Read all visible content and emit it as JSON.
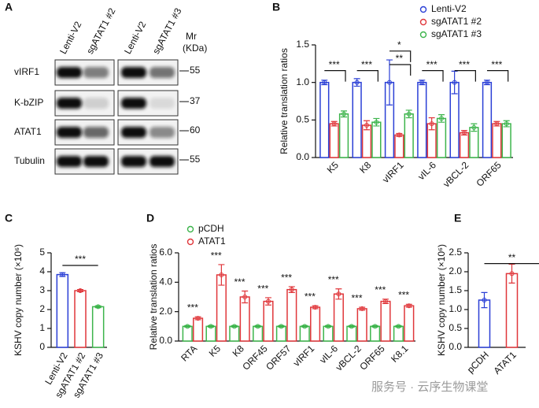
{
  "blot": {
    "label": "A",
    "lanes": [
      "Lenti-V2",
      "sgATAT1 #2",
      "Lenti-V2",
      "sgATAT1 #3"
    ],
    "mr": [
      "Mr",
      "(KDa)"
    ],
    "rows": [
      {
        "name": "vIRF1",
        "mr": "55"
      },
      {
        "name": "K-bZIP",
        "mr": "37"
      },
      {
        "name": "ATAT1",
        "mr": "60"
      },
      {
        "name": "Tubulin",
        "mr": "55"
      }
    ]
  },
  "chart_data": [
    {
      "type": "bar",
      "label": "B",
      "ylabel": "Relative translation ratios",
      "categories": [
        "K5",
        "K8",
        "vIRF1",
        "vIL-6",
        "vBCL-2",
        "ORF65"
      ],
      "series": [
        {
          "name": "Lenti-V2",
          "color": "#2a3fd6",
          "values": [
            1,
            1,
            1,
            1,
            1,
            1
          ],
          "errors": [
            0.03,
            0.05,
            0.3,
            0.03,
            0.15,
            0.03
          ]
        },
        {
          "name": "sgATAT1 #2",
          "color": "#e0363a",
          "values": [
            0.45,
            0.43,
            0.3,
            0.45,
            0.33,
            0.45
          ],
          "errors": [
            0.03,
            0.06,
            0.02,
            0.08,
            0.03,
            0.03
          ]
        },
        {
          "name": "sgATAT1 #3",
          "color": "#3cb44b",
          "values": [
            0.58,
            0.47,
            0.58,
            0.52,
            0.4,
            0.45
          ],
          "errors": [
            0.04,
            0.05,
            0.05,
            0.05,
            0.05,
            0.04
          ]
        }
      ],
      "ylim": [
        0,
        1.5
      ],
      "yticks": [
        {
          "value": 0,
          "label": "0.0"
        },
        0.5,
        {
          "value": 1,
          "label": "1.0"
        },
        1.5
      ],
      "legend": "top-right",
      "annotations": [
        "***",
        "***",
        "**",
        "*",
        "***",
        "***",
        "***"
      ]
    },
    {
      "type": "bar",
      "label": "C",
      "ylabel": "KSHV copy number (×10⁶)",
      "categories": [
        "Lenti-V2",
        "sgATAT1 #2",
        "sgATAT1 #3"
      ],
      "values": [
        3.85,
        3.0,
        2.15
      ],
      "errors": [
        0.1,
        0.06,
        0.05
      ],
      "colors": [
        "#2a3fd6",
        "#e0363a",
        "#3cb44b"
      ],
      "ylim": [
        0,
        5
      ],
      "yticks": [
        0,
        1,
        2,
        3,
        4,
        5
      ],
      "annotations": [
        "***"
      ]
    },
    {
      "type": "bar",
      "label": "D",
      "ylabel": "Relative translation ratios",
      "categories": [
        "RTA",
        "K5",
        "K8",
        "ORF45",
        "ORF57",
        "vIRF1",
        "vIL-6",
        "vBCL-2",
        "ORF65",
        "K8.1"
      ],
      "series": [
        {
          "name": "pCDH",
          "color": "#3cb44b",
          "values": [
            1,
            1,
            1,
            1,
            1,
            1,
            1,
            1,
            1,
            1
          ],
          "errors": [
            0.05,
            0.05,
            0.05,
            0.05,
            0.05,
            0.05,
            0.05,
            0.05,
            0.05,
            0.05
          ]
        },
        {
          "name": "ATAT1",
          "color": "#e0363a",
          "values": [
            1.55,
            4.5,
            3.0,
            2.7,
            3.5,
            2.3,
            3.2,
            2.2,
            2.7,
            2.4
          ],
          "errors": [
            0.1,
            0.7,
            0.4,
            0.25,
            0.2,
            0.1,
            0.35,
            0.1,
            0.15,
            0.1
          ]
        }
      ],
      "ylim": [
        0,
        6
      ],
      "yticks": [
        {
          "value": 0,
          "label": "0.0"
        },
        {
          "value": 2,
          "label": "2.0"
        },
        {
          "value": 4,
          "label": "4.0"
        },
        {
          "value": 6,
          "label": "6.0"
        }
      ],
      "legend": "top-left",
      "annotations": [
        "***",
        "***",
        "***",
        "***",
        "***",
        "***",
        "***",
        "***",
        "***",
        "***"
      ]
    },
    {
      "type": "bar",
      "label": "E",
      "ylabel": "KSHV copy number (×10⁶)",
      "categories": [
        "pCDH",
        "ATAT1"
      ],
      "values": [
        1.25,
        1.95
      ],
      "errors": [
        0.2,
        0.25
      ],
      "colors": [
        "#2a3fd6",
        "#e0363a"
      ],
      "ylim": [
        0,
        2.5
      ],
      "yticks": [
        {
          "value": 0,
          "label": "0.0"
        },
        0.5,
        {
          "value": 1,
          "label": "1.0"
        },
        1.5,
        {
          "value": 2,
          "label": "2.0"
        },
        2.5
      ],
      "annotations": [
        "**"
      ]
    }
  ],
  "watermark": "服务号 · 云序生物课堂"
}
